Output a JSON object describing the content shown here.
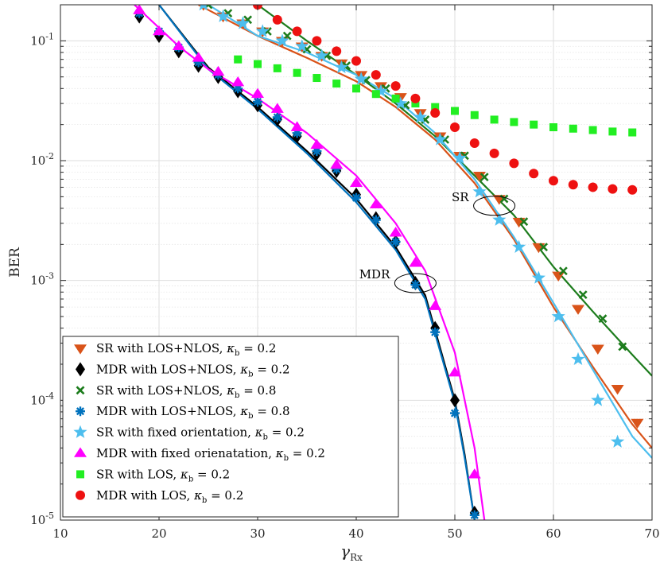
{
  "chart_data": {
    "type": "line",
    "xlabel": "γ",
    "xlabel_sub": "Rx",
    "ylabel": "BER",
    "xlim": [
      10,
      70
    ],
    "ylim": [
      1e-05,
      0.2
    ],
    "yscale": "log",
    "grid": true,
    "legend_position": "bottom-left",
    "x_ticks": [
      10,
      20,
      30,
      40,
      50,
      60,
      70
    ],
    "x_tick_labels": [
      "10",
      "20",
      "30",
      "40",
      "50",
      "60",
      "70"
    ],
    "y_ticks": [
      0.1,
      0.01,
      0.001,
      0.0001,
      1e-05
    ],
    "y_tick_labels": [
      {
        "base": "10",
        "exp": "-1"
      },
      {
        "base": "10",
        "exp": "-2"
      },
      {
        "base": "10",
        "exp": "-3"
      },
      {
        "base": "10",
        "exp": "-4"
      },
      {
        "base": "10",
        "exp": "-5"
      }
    ],
    "annotations": [
      {
        "text": "SR",
        "x": 54,
        "y": 0.0042
      },
      {
        "text": "MDR",
        "x": 46,
        "y": 0.00095
      }
    ],
    "curves": [
      {
        "color": "#d95319",
        "x": [
          24,
          30,
          35,
          40,
          44,
          48,
          52,
          56,
          60,
          64,
          68,
          70
        ],
        "y": [
          0.2,
          0.11,
          0.072,
          0.046,
          0.028,
          0.015,
          0.0065,
          0.0022,
          0.0006,
          0.00019,
          6.3e-05,
          4e-05
        ]
      },
      {
        "color": "#000000",
        "x": [
          20,
          25,
          30,
          35,
          40,
          44,
          47,
          50,
          51,
          52
        ],
        "y": [
          0.2,
          0.06,
          0.028,
          0.012,
          0.0048,
          0.0019,
          0.00075,
          0.0001,
          3.5e-05,
          1e-05
        ]
      },
      {
        "color": "#1c7c1c",
        "x": [
          30,
          35,
          40,
          44,
          48,
          52,
          56,
          60,
          64,
          68,
          70
        ],
        "y": [
          0.2,
          0.1,
          0.052,
          0.03,
          0.016,
          0.0075,
          0.0035,
          0.0013,
          0.00055,
          0.00024,
          0.00016
        ]
      },
      {
        "color": "#0072bd",
        "x": [
          20,
          25,
          30,
          35,
          40,
          44,
          47,
          50,
          51,
          52
        ],
        "y": [
          0.2,
          0.058,
          0.027,
          0.0115,
          0.0045,
          0.0018,
          0.0007,
          9.5e-05,
          3.3e-05,
          1e-05
        ]
      },
      {
        "color": "#4dbeee",
        "x": [
          25,
          30,
          35,
          40,
          44,
          48,
          52,
          56,
          60,
          64,
          68,
          70
        ],
        "y": [
          0.2,
          0.11,
          0.08,
          0.052,
          0.033,
          0.017,
          0.007,
          0.0023,
          0.00065,
          0.00018,
          5e-05,
          3.3e-05
        ]
      },
      {
        "color": "#ff00ff",
        "x": [
          17.5,
          22,
          25,
          30,
          35,
          40,
          44,
          47,
          50,
          52,
          53
        ],
        "y": [
          0.2,
          0.09,
          0.058,
          0.033,
          0.017,
          0.0075,
          0.003,
          0.0012,
          0.00025,
          4e-05,
          1e-05
        ]
      }
    ],
    "series": [
      {
        "name": "SR with LOS+NLOS, ",
        "kappa": "κ",
        "sub": "b",
        "value": " = 0.2",
        "marker": "tri-down",
        "color": "#d95319",
        "x": [
          24.5,
          26.5,
          28.5,
          30.5,
          32.5,
          34.5,
          36.5,
          38.5,
          40.5,
          42.5,
          44.5,
          46.5,
          48.5,
          50.5,
          52.5,
          54.5,
          56.5,
          58.5,
          60.5,
          62.5,
          64.5,
          66.5,
          68.5
        ],
        "y": [
          0.2,
          0.16,
          0.14,
          0.12,
          0.1,
          0.09,
          0.075,
          0.065,
          0.052,
          0.042,
          0.034,
          0.025,
          0.016,
          0.011,
          0.0075,
          0.0048,
          0.0031,
          0.0019,
          0.0011,
          0.00058,
          0.00027,
          0.000125,
          6.5e-05
        ]
      },
      {
        "name": "MDR with LOS+NLOS, ",
        "kappa": "κ",
        "sub": "b",
        "value": " = 0.2",
        "marker": "diamond",
        "color": "#000000",
        "x": [
          18,
          20,
          22,
          24,
          26,
          28,
          30,
          32,
          34,
          36,
          38,
          40,
          42,
          44,
          46,
          48,
          50,
          52
        ],
        "y": [
          0.16,
          0.11,
          0.082,
          0.062,
          0.05,
          0.038,
          0.029,
          0.022,
          0.016,
          0.0115,
          0.0082,
          0.0052,
          0.0033,
          0.0021,
          0.00095,
          0.0004,
          0.0001,
          1.15e-05
        ]
      },
      {
        "name": "SR with LOS+NLOS, ",
        "kappa": "κ",
        "sub": "b",
        "value": " = 0.8",
        "marker": "x",
        "color": "#1c7c1c",
        "x": [
          25,
          27,
          29,
          31,
          33,
          35,
          37,
          39,
          41,
          43,
          45,
          47,
          49,
          51,
          53,
          55,
          57,
          59,
          61,
          63,
          65,
          67
        ],
        "y": [
          0.2,
          0.17,
          0.15,
          0.12,
          0.11,
          0.085,
          0.075,
          0.062,
          0.047,
          0.04,
          0.029,
          0.022,
          0.015,
          0.011,
          0.0073,
          0.0048,
          0.0031,
          0.0019,
          0.0012,
          0.00076,
          0.00048,
          0.00028
        ]
      },
      {
        "name": "MDR with LOS+NLOS, ",
        "kappa": "κ",
        "sub": "b",
        "value": " = 0.8",
        "marker": "asterisk",
        "color": "#0072bd",
        "x": [
          18,
          20,
          22,
          24,
          26,
          28,
          30,
          32,
          34,
          36,
          38,
          40,
          42,
          44,
          46,
          48,
          50,
          52
        ],
        "y": [
          0.17,
          0.12,
          0.088,
          0.066,
          0.052,
          0.04,
          0.031,
          0.023,
          0.017,
          0.012,
          0.0085,
          0.0049,
          0.0032,
          0.0021,
          0.00092,
          0.00037,
          7.8e-05,
          1.1e-05
        ]
      },
      {
        "name": "SR with fixed orientation, ",
        "kappa": "κ",
        "sub": "b",
        "value": " = 0.2",
        "marker": "star",
        "color": "#4dbeee",
        "x": [
          24.5,
          26.5,
          28.5,
          30.5,
          32.5,
          34.5,
          36.5,
          38.5,
          40.5,
          42.5,
          44.5,
          46.5,
          48.5,
          50.5,
          52.5,
          54.5,
          56.5,
          58.5,
          60.5,
          62.5,
          64.5,
          66.5
        ],
        "y": [
          0.2,
          0.16,
          0.14,
          0.12,
          0.1,
          0.09,
          0.075,
          0.06,
          0.048,
          0.038,
          0.03,
          0.023,
          0.015,
          0.0105,
          0.0055,
          0.0032,
          0.0019,
          0.00105,
          0.0005,
          0.00022,
          0.0001,
          4.5e-05
        ]
      },
      {
        "name": "MDR with fixed orienatation, ",
        "kappa": "κ",
        "sub": "b",
        "value": " = 0.2",
        "marker": "tri-up",
        "color": "#ff00ff",
        "x": [
          18,
          20,
          22,
          24,
          26,
          28,
          30,
          32,
          34,
          36,
          38,
          40,
          42,
          44,
          46,
          48,
          50,
          52
        ],
        "y": [
          0.18,
          0.12,
          0.09,
          0.072,
          0.055,
          0.045,
          0.036,
          0.027,
          0.019,
          0.0135,
          0.0092,
          0.0065,
          0.0043,
          0.0025,
          0.0014,
          0.00061,
          0.00017,
          2.4e-05
        ]
      },
      {
        "name": "SR with LOS, ",
        "kappa": "κ",
        "sub": "b",
        "value": " = 0.2",
        "marker": "square",
        "color": "#22ee22",
        "x": [
          28,
          30,
          32,
          34,
          36,
          38,
          40,
          42,
          44,
          46,
          48,
          50,
          52,
          54,
          56,
          58,
          60,
          62,
          64,
          66,
          68
        ],
        "y": [
          0.07,
          0.064,
          0.059,
          0.054,
          0.049,
          0.044,
          0.04,
          0.036,
          0.033,
          0.03,
          0.028,
          0.026,
          0.024,
          0.022,
          0.021,
          0.02,
          0.019,
          0.0185,
          0.018,
          0.0175,
          0.0172
        ]
      },
      {
        "name": "MDR with LOS, ",
        "kappa": "κ",
        "sub": "b",
        "value": " = 0.2",
        "marker": "circle",
        "color": "#ee1111",
        "x": [
          30,
          32,
          34,
          36,
          38,
          40,
          42,
          44,
          46,
          48,
          50,
          52,
          54,
          56,
          58,
          60,
          62,
          64,
          66,
          68
        ],
        "y": [
          0.2,
          0.15,
          0.12,
          0.1,
          0.082,
          0.068,
          0.052,
          0.042,
          0.033,
          0.025,
          0.019,
          0.014,
          0.0115,
          0.0095,
          0.0078,
          0.0068,
          0.0063,
          0.006,
          0.0058,
          0.0057
        ]
      }
    ]
  }
}
